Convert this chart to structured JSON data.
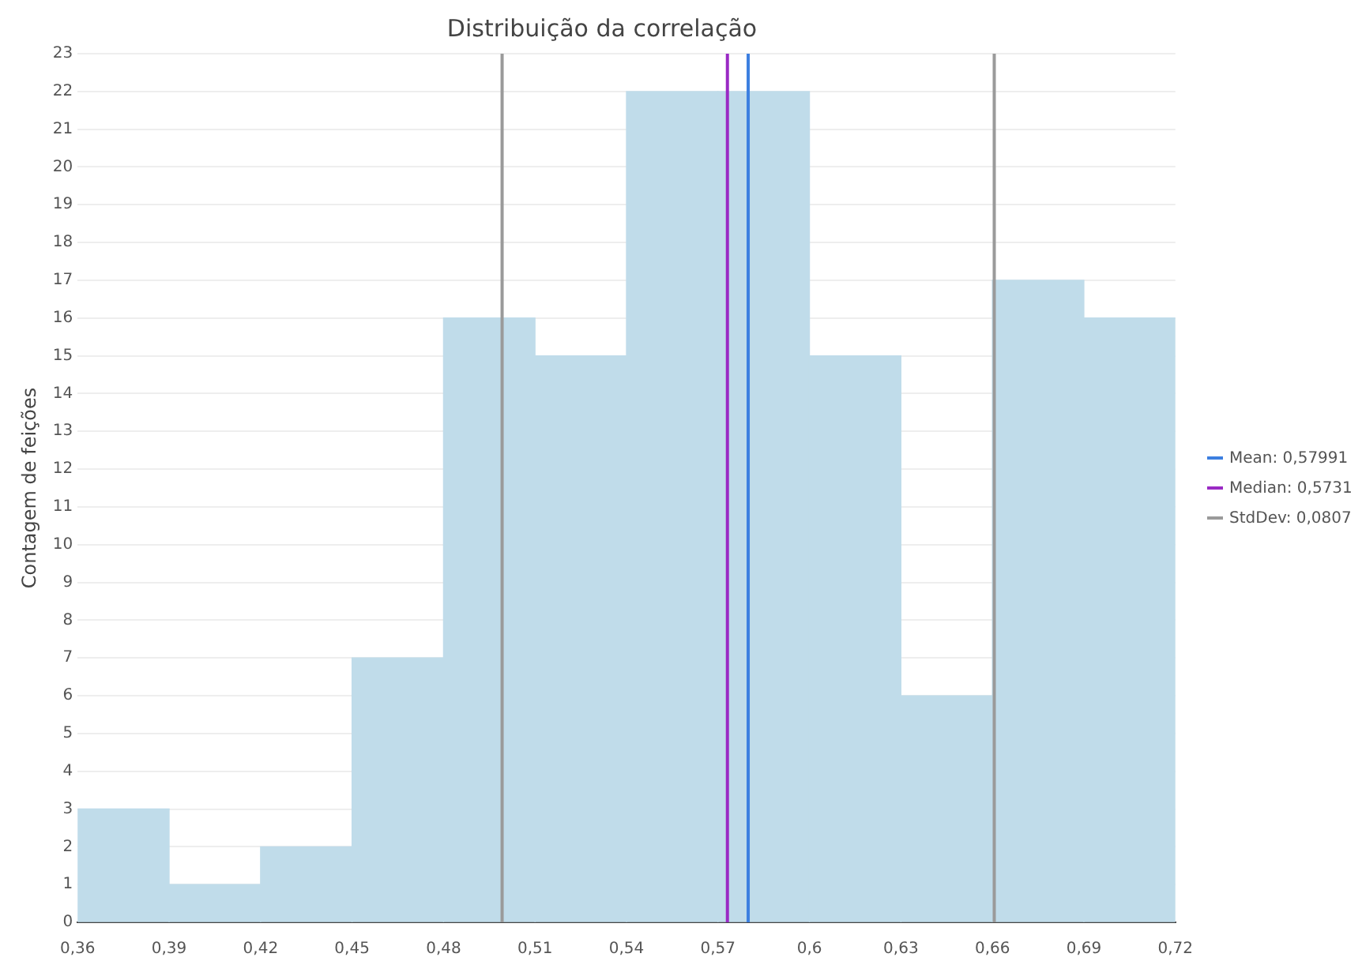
{
  "chart_data": {
    "type": "histogram",
    "title": "Distribuição da correlação",
    "ylabel": "Contagem de feições",
    "bins": [
      0.36,
      0.39,
      0.42,
      0.45,
      0.48,
      0.51,
      0.54,
      0.57,
      0.6,
      0.63,
      0.66,
      0.69,
      0.72
    ],
    "values": [
      3,
      1,
      2,
      7,
      16,
      15,
      22,
      22,
      15,
      6,
      17,
      16
    ],
    "color": "#c0dcea",
    "xlim": [
      0.36,
      0.72
    ],
    "xticks": [
      {
        "value": 0.36,
        "label": "0,36"
      },
      {
        "value": 0.39,
        "label": "0,39"
      },
      {
        "value": 0.42,
        "label": "0,42"
      },
      {
        "value": 0.45,
        "label": "0,45"
      },
      {
        "value": 0.48,
        "label": "0,48"
      },
      {
        "value": 0.51,
        "label": "0,51"
      },
      {
        "value": 0.54,
        "label": "0,54"
      },
      {
        "value": 0.57,
        "label": "0,57"
      },
      {
        "value": 0.6,
        "label": "0,6"
      },
      {
        "value": 0.63,
        "label": "0,63"
      },
      {
        "value": 0.66,
        "label": "0,66"
      },
      {
        "value": 0.69,
        "label": "0,69"
      },
      {
        "value": 0.72,
        "label": "0,72"
      }
    ],
    "ylim": [
      0,
      23
    ],
    "yticks": [
      0,
      1,
      2,
      3,
      4,
      5,
      6,
      7,
      8,
      9,
      10,
      11,
      12,
      13,
      14,
      15,
      16,
      17,
      18,
      19,
      20,
      21,
      22,
      23
    ],
    "ref_lines": [
      {
        "axis": "x",
        "value": 0.57991,
        "color": "#3c7fe0"
      },
      {
        "axis": "x",
        "value": 0.5731,
        "color": "#9a2ac4"
      },
      {
        "axis": "x",
        "value": 0.49921,
        "color": "#9a9a9a"
      },
      {
        "axis": "x",
        "value": 0.66061,
        "color": "#9a9a9a"
      }
    ],
    "annotations": [
      "Mean: 0,57991",
      "Median: 0,5731",
      "StdDev: 0,0807"
    ],
    "grid": "y"
  }
}
